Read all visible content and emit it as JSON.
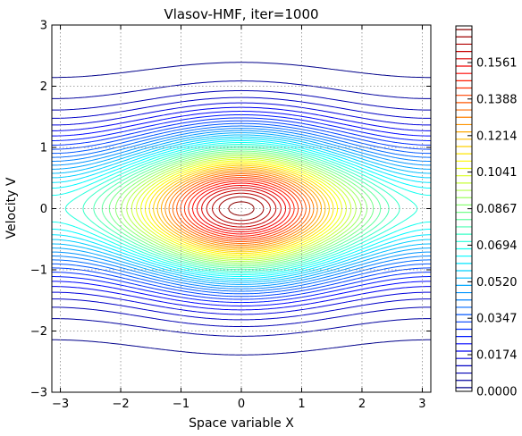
{
  "chart_data": {
    "type": "contour",
    "title": "Vlasov-HMF, iter=1000",
    "xlabel": "Space variable X",
    "ylabel": "Velocity V",
    "xlim": [
      -3.14159,
      3.14159
    ],
    "ylim": [
      -3,
      3
    ],
    "x_ticks": [
      -3,
      -2,
      -1,
      0,
      1,
      2,
      3
    ],
    "x_tick_labels": [
      "−3",
      "−2",
      "−1",
      "0",
      "1",
      "2",
      "3"
    ],
    "y_ticks": [
      -3,
      -2,
      -1,
      0,
      1,
      2,
      3
    ],
    "y_tick_labels": [
      "−3",
      "−2",
      "−1",
      "0",
      "1",
      "2",
      "3"
    ],
    "grid": true,
    "colormap": "jet",
    "levels_min": 0.0,
    "levels_max": 0.1735,
    "level_count": 50,
    "colorbar_ticks": [
      0.0,
      0.0174,
      0.0347,
      0.052,
      0.0694,
      0.0867,
      0.1041,
      0.1214,
      0.1388,
      0.1561
    ],
    "colorbar_tick_labels": [
      "0.0000",
      "0.0174",
      "0.0347",
      "0.0520",
      "0.0694",
      "0.0867",
      "0.1041",
      "0.1214",
      "0.1388",
      "0.1561"
    ],
    "colorbar_location": "right"
  }
}
